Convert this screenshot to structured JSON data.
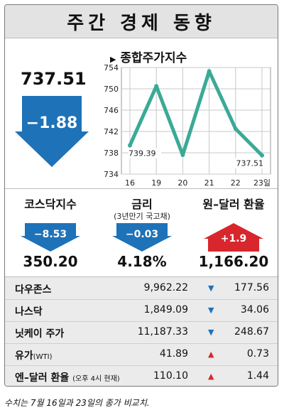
{
  "title": "주간 경제 동향",
  "kospi": {
    "value": "737.51",
    "change": "−1.88",
    "direction": "down"
  },
  "chart_data": {
    "type": "line",
    "title": "종합주가지수",
    "categories": [
      "16",
      "19",
      "20",
      "21",
      "22",
      "23일"
    ],
    "values": [
      739.39,
      750.5,
      737.6,
      753.3,
      742.5,
      737.51
    ],
    "y_ticks": [
      "734",
      "738",
      "742",
      "746",
      "750",
      "754"
    ],
    "ylim": [
      734,
      754
    ],
    "grid": true,
    "point_labels": [
      {
        "index": 0,
        "text": "739.39"
      },
      {
        "index": 5,
        "text": "737.51"
      }
    ],
    "line_color": "#3aaa97"
  },
  "indicators": [
    {
      "name": "코스닥지수",
      "sub": "",
      "change": "−8.53",
      "direction": "down",
      "value": "350.20"
    },
    {
      "name": "금리",
      "sub": "(3년만기 국고채)",
      "change": "−0.03",
      "direction": "down",
      "value": "4.18%"
    },
    {
      "name": "원–달러 환율",
      "sub": "",
      "change": "+1.9",
      "direction": "up",
      "value": "1,166.20"
    }
  ],
  "table": [
    {
      "name": "다우존스",
      "note": "",
      "value": "9,962.22",
      "direction": "down",
      "icon": "down-triangle-icon",
      "change": "177.56"
    },
    {
      "name": "나스닥",
      "note": "",
      "value": "1,849.09",
      "direction": "down",
      "icon": "down-triangle-icon",
      "change": "34.06"
    },
    {
      "name": "닛케이 주가",
      "note": "",
      "value": "11,187.33",
      "direction": "down",
      "icon": "down-triangle-icon",
      "change": "248.67"
    },
    {
      "name": "유가",
      "note": "(WTI)",
      "value": "41.89",
      "direction": "up",
      "icon": "up-triangle-icon",
      "change": "0.73"
    },
    {
      "name": "엔–달러 환율",
      "note": "(오후 4시 현재)",
      "value": "110.10",
      "direction": "up",
      "icon": "up-triangle-icon",
      "change": "1.44"
    }
  ],
  "footnote": "수치는 7월 16일과 23일의 종가 비교치.",
  "colors": {
    "down": "#1e72b8",
    "up": "#d8262d",
    "line": "#3aaa97"
  }
}
